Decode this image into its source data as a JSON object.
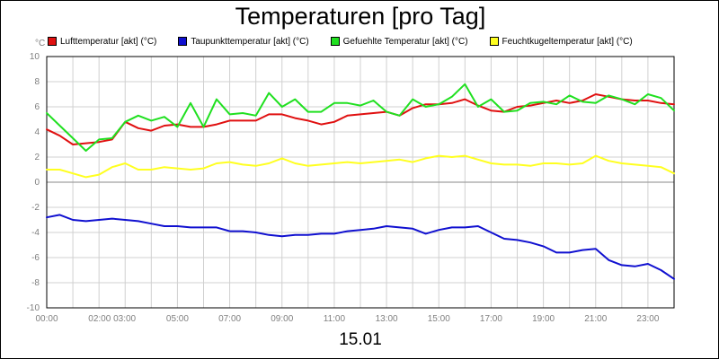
{
  "chart_data": {
    "type": "line",
    "title": "Temperaturen [pro Tag]",
    "xlabel": "15.01",
    "ylabel": "°C",
    "ylim": [
      -10,
      10
    ],
    "xlim_hours": [
      0,
      24
    ],
    "yticks": [
      "10",
      "8",
      "6",
      "4",
      "2",
      "0",
      "-2",
      "-4",
      "-6",
      "-8",
      "-10"
    ],
    "xticks": [
      "00:00",
      "02:00 03:00",
      "05:00",
      "07:00",
      "09:00",
      "11:00",
      "13:00",
      "15:00",
      "17:00",
      "19:00",
      "21:00",
      "23:00"
    ],
    "xtick_hours": [
      0,
      2.5,
      5,
      7,
      9,
      11,
      13,
      15,
      17,
      19,
      21,
      23
    ],
    "grid": true,
    "legend_position": "top",
    "series": [
      {
        "name": "Lufttemperatur [akt] (°C)",
        "color": "#e01010",
        "x": [
          0,
          0.5,
          1,
          1.5,
          2,
          2.5,
          3,
          3.5,
          4,
          4.5,
          5,
          5.5,
          6,
          6.5,
          7,
          7.5,
          8,
          8.5,
          9,
          9.5,
          10,
          10.5,
          11,
          11.5,
          12,
          12.5,
          13,
          13.5,
          14,
          14.5,
          15,
          15.5,
          16,
          16.5,
          17,
          17.5,
          18,
          18.5,
          19,
          19.5,
          20,
          20.5,
          21,
          21.5,
          22,
          22.5,
          23,
          23.5,
          24
        ],
        "values": [
          4.2,
          3.7,
          3.0,
          3.1,
          3.2,
          3.4,
          4.8,
          4.3,
          4.1,
          4.5,
          4.6,
          4.4,
          4.4,
          4.6,
          4.9,
          4.9,
          4.9,
          5.4,
          5.4,
          5.1,
          4.9,
          4.6,
          4.8,
          5.3,
          5.4,
          5.5,
          5.6,
          5.3,
          5.9,
          6.2,
          6.2,
          6.3,
          6.6,
          6.1,
          5.7,
          5.6,
          6.0,
          6.1,
          6.3,
          6.5,
          6.3,
          6.5,
          7.0,
          6.8,
          6.6,
          6.5,
          6.5,
          6.3,
          6.2
        ]
      },
      {
        "name": "Taupunkttemperatur [akt] (°C)",
        "color": "#1010d0",
        "x": [
          0,
          0.5,
          1,
          1.5,
          2,
          2.5,
          3,
          3.5,
          4,
          4.5,
          5,
          5.5,
          6,
          6.5,
          7,
          7.5,
          8,
          8.5,
          9,
          9.5,
          10,
          10.5,
          11,
          11.5,
          12,
          12.5,
          13,
          13.5,
          14,
          14.5,
          15,
          15.5,
          16,
          16.5,
          17,
          17.5,
          18,
          18.5,
          19,
          19.5,
          20,
          20.5,
          21,
          21.5,
          22,
          22.5,
          23,
          23.5,
          24
        ],
        "values": [
          -2.8,
          -2.6,
          -3.0,
          -3.1,
          -3.0,
          -2.9,
          -3.0,
          -3.1,
          -3.3,
          -3.5,
          -3.5,
          -3.6,
          -3.6,
          -3.6,
          -3.9,
          -3.9,
          -4.0,
          -4.2,
          -4.3,
          -4.2,
          -4.2,
          -4.1,
          -4.1,
          -3.9,
          -3.8,
          -3.7,
          -3.5,
          -3.6,
          -3.7,
          -4.1,
          -3.8,
          -3.6,
          -3.6,
          -3.5,
          -4.0,
          -4.5,
          -4.6,
          -4.8,
          -5.1,
          -5.6,
          -5.6,
          -5.4,
          -5.3,
          -6.2,
          -6.6,
          -6.7,
          -6.5,
          -7.0,
          -7.7
        ]
      },
      {
        "name": "Gefuehlte Temperatur [akt] (°C)",
        "color": "#20e020",
        "x": [
          0,
          0.5,
          1,
          1.5,
          2,
          2.5,
          3,
          3.5,
          4,
          4.5,
          5,
          5.5,
          6,
          6.5,
          7,
          7.5,
          8,
          8.5,
          9,
          9.5,
          10,
          10.5,
          11,
          11.5,
          12,
          12.5,
          13,
          13.5,
          14,
          14.5,
          15,
          15.5,
          16,
          16.5,
          17,
          17.5,
          18,
          18.5,
          19,
          19.5,
          20,
          20.5,
          21,
          21.5,
          22,
          22.5,
          23,
          23.5,
          24
        ],
        "values": [
          5.5,
          4.5,
          3.5,
          2.5,
          3.4,
          3.5,
          4.8,
          5.3,
          4.9,
          5.2,
          4.4,
          6.3,
          4.4,
          6.6,
          5.4,
          5.5,
          5.3,
          7.1,
          6.0,
          6.6,
          5.6,
          5.6,
          6.3,
          6.3,
          6.1,
          6.5,
          5.6,
          5.3,
          6.6,
          6.0,
          6.2,
          6.8,
          7.8,
          6.0,
          6.6,
          5.6,
          5.7,
          6.3,
          6.4,
          6.2,
          6.9,
          6.4,
          6.3,
          6.9,
          6.6,
          6.2,
          7.0,
          6.7,
          5.7
        ]
      },
      {
        "name": "Feuchtkugeltemperatur [akt] (°C)",
        "color": "#ffff20",
        "x": [
          0,
          0.5,
          1,
          1.5,
          2,
          2.5,
          3,
          3.5,
          4,
          4.5,
          5,
          5.5,
          6,
          6.5,
          7,
          7.5,
          8,
          8.5,
          9,
          9.5,
          10,
          10.5,
          11,
          11.5,
          12,
          12.5,
          13,
          13.5,
          14,
          14.5,
          15,
          15.5,
          16,
          16.5,
          17,
          17.5,
          18,
          18.5,
          19,
          19.5,
          20,
          20.5,
          21,
          21.5,
          22,
          22.5,
          23,
          23.5,
          24
        ],
        "values": [
          1.0,
          1.0,
          0.7,
          0.4,
          0.6,
          1.2,
          1.5,
          1.0,
          1.0,
          1.2,
          1.1,
          1.0,
          1.1,
          1.5,
          1.6,
          1.4,
          1.3,
          1.5,
          1.9,
          1.5,
          1.3,
          1.4,
          1.5,
          1.6,
          1.5,
          1.6,
          1.7,
          1.8,
          1.6,
          1.9,
          2.1,
          2.0,
          2.1,
          1.8,
          1.5,
          1.4,
          1.4,
          1.3,
          1.5,
          1.5,
          1.4,
          1.5,
          2.1,
          1.7,
          1.5,
          1.4,
          1.3,
          1.2,
          0.7
        ]
      }
    ]
  }
}
